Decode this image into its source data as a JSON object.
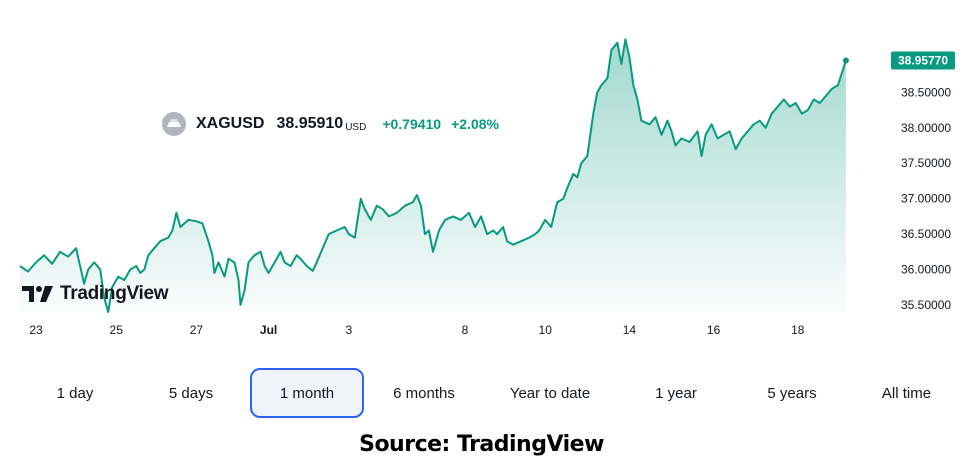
{
  "legend": {
    "symbol": "XAGUSD",
    "price": "38.95910",
    "currency": "USD",
    "change": "+0.79410",
    "change_pct": "+2.08%"
  },
  "watermark": {
    "text": "TradingView"
  },
  "last_price_label": "38.95770",
  "ranges": [
    {
      "label": "1 day",
      "active": false
    },
    {
      "label": "5 days",
      "active": false
    },
    {
      "label": "1 month",
      "active": true
    },
    {
      "label": "6 months",
      "active": false
    },
    {
      "label": "Year to date",
      "active": false
    },
    {
      "label": "1 year",
      "active": false
    },
    {
      "label": "5 years",
      "active": false
    },
    {
      "label": "All time",
      "active": false
    }
  ],
  "source": "Source: TradingView",
  "colors": {
    "line": "#089981",
    "area_top": "#089981",
    "accent": "#2962ff"
  },
  "chart_data": {
    "type": "area",
    "y_ticks": [
      "35.50000",
      "36.00000",
      "36.50000",
      "37.00000",
      "37.50000",
      "38.00000",
      "38.50000"
    ],
    "ylim": [
      35.4,
      39.55
    ],
    "x_ticks": [
      {
        "label": "23",
        "t": 0.4
      },
      {
        "label": "25",
        "t": 2.4
      },
      {
        "label": "27",
        "t": 4.4
      },
      {
        "label": "Jul",
        "t": 6.2
      },
      {
        "label": "3",
        "t": 8.2
      },
      {
        "label": "8",
        "t": 11.1
      },
      {
        "label": "10",
        "t": 13.1
      },
      {
        "label": "14",
        "t": 15.2
      },
      {
        "label": "16",
        "t": 17.3
      },
      {
        "label": "18",
        "t": 19.4
      }
    ],
    "xlim": [
      0,
      21.6
    ],
    "series": [
      {
        "points": [
          [
            0.0,
            36.05
          ],
          [
            0.2,
            35.97
          ],
          [
            0.4,
            36.1
          ],
          [
            0.6,
            36.2
          ],
          [
            0.8,
            36.08
          ],
          [
            1.0,
            36.25
          ],
          [
            1.2,
            36.18
          ],
          [
            1.4,
            36.3
          ],
          [
            1.5,
            36.05
          ],
          [
            1.6,
            35.8
          ],
          [
            1.7,
            36.0
          ],
          [
            1.85,
            36.1
          ],
          [
            2.0,
            36.0
          ],
          [
            2.1,
            35.6
          ],
          [
            2.2,
            35.4
          ],
          [
            2.3,
            35.75
          ],
          [
            2.45,
            35.9
          ],
          [
            2.6,
            35.85
          ],
          [
            2.75,
            36.0
          ],
          [
            2.9,
            36.05
          ],
          [
            3.0,
            35.95
          ],
          [
            3.1,
            36.0
          ],
          [
            3.2,
            36.2
          ],
          [
            3.35,
            36.3
          ],
          [
            3.5,
            36.4
          ],
          [
            3.7,
            36.45
          ],
          [
            3.8,
            36.55
          ],
          [
            3.9,
            36.8
          ],
          [
            4.0,
            36.6
          ],
          [
            4.2,
            36.7
          ],
          [
            4.4,
            36.68
          ],
          [
            4.55,
            36.65
          ],
          [
            4.7,
            36.4
          ],
          [
            4.8,
            36.2
          ],
          [
            4.85,
            35.95
          ],
          [
            4.95,
            36.1
          ],
          [
            5.1,
            35.9
          ],
          [
            5.2,
            36.15
          ],
          [
            5.35,
            36.1
          ],
          [
            5.45,
            35.85
          ],
          [
            5.5,
            35.5
          ],
          [
            5.6,
            35.7
          ],
          [
            5.7,
            36.1
          ],
          [
            5.85,
            36.2
          ],
          [
            6.0,
            36.25
          ],
          [
            6.1,
            36.05
          ],
          [
            6.2,
            35.95
          ],
          [
            6.35,
            36.1
          ],
          [
            6.5,
            36.25
          ],
          [
            6.6,
            36.1
          ],
          [
            6.75,
            36.05
          ],
          [
            6.9,
            36.2
          ],
          [
            7.0,
            36.15
          ],
          [
            7.15,
            36.05
          ],
          [
            7.3,
            35.98
          ],
          [
            7.4,
            36.1
          ],
          [
            7.55,
            36.3
          ],
          [
            7.7,
            36.5
          ],
          [
            7.9,
            36.55
          ],
          [
            8.1,
            36.6
          ],
          [
            8.2,
            36.5
          ],
          [
            8.35,
            36.45
          ],
          [
            8.5,
            37.0
          ],
          [
            8.6,
            36.85
          ],
          [
            8.75,
            36.7
          ],
          [
            8.9,
            36.9
          ],
          [
            9.05,
            36.85
          ],
          [
            9.2,
            36.75
          ],
          [
            9.4,
            36.8
          ],
          [
            9.6,
            36.9
          ],
          [
            9.8,
            36.95
          ],
          [
            9.9,
            37.05
          ],
          [
            10.0,
            36.9
          ],
          [
            10.1,
            36.5
          ],
          [
            10.2,
            36.55
          ],
          [
            10.3,
            36.25
          ],
          [
            10.45,
            36.55
          ],
          [
            10.6,
            36.7
          ],
          [
            10.8,
            36.75
          ],
          [
            11.0,
            36.7
          ],
          [
            11.2,
            36.8
          ],
          [
            11.35,
            36.6
          ],
          [
            11.5,
            36.75
          ],
          [
            11.65,
            36.5
          ],
          [
            11.8,
            36.55
          ],
          [
            11.9,
            36.5
          ],
          [
            12.05,
            36.6
          ],
          [
            12.15,
            36.4
          ],
          [
            12.3,
            36.35
          ],
          [
            12.5,
            36.4
          ],
          [
            12.7,
            36.45
          ],
          [
            12.85,
            36.5
          ],
          [
            12.95,
            36.55
          ],
          [
            13.1,
            36.7
          ],
          [
            13.25,
            36.6
          ],
          [
            13.4,
            36.95
          ],
          [
            13.55,
            37.0
          ],
          [
            13.65,
            37.15
          ],
          [
            13.8,
            37.35
          ],
          [
            13.9,
            37.3
          ],
          [
            14.0,
            37.5
          ],
          [
            14.15,
            37.6
          ],
          [
            14.3,
            38.2
          ],
          [
            14.4,
            38.5
          ],
          [
            14.5,
            38.6
          ],
          [
            14.65,
            38.7
          ],
          [
            14.75,
            39.1
          ],
          [
            14.9,
            39.2
          ],
          [
            15.0,
            38.9
          ],
          [
            15.1,
            39.25
          ],
          [
            15.2,
            39.0
          ],
          [
            15.3,
            38.6
          ],
          [
            15.4,
            38.4
          ],
          [
            15.5,
            38.1
          ],
          [
            15.7,
            38.05
          ],
          [
            15.85,
            38.15
          ],
          [
            16.0,
            37.9
          ],
          [
            16.15,
            38.1
          ],
          [
            16.25,
            37.95
          ],
          [
            16.35,
            37.75
          ],
          [
            16.5,
            37.85
          ],
          [
            16.7,
            37.8
          ],
          [
            16.9,
            37.95
          ],
          [
            17.0,
            37.6
          ],
          [
            17.1,
            37.9
          ],
          [
            17.25,
            38.05
          ],
          [
            17.4,
            37.85
          ],
          [
            17.55,
            37.9
          ],
          [
            17.7,
            37.95
          ],
          [
            17.85,
            37.7
          ],
          [
            18.0,
            37.85
          ],
          [
            18.15,
            37.95
          ],
          [
            18.3,
            38.05
          ],
          [
            18.45,
            38.1
          ],
          [
            18.6,
            38.0
          ],
          [
            18.75,
            38.2
          ],
          [
            18.9,
            38.3
          ],
          [
            19.05,
            38.4
          ],
          [
            19.2,
            38.3
          ],
          [
            19.35,
            38.35
          ],
          [
            19.5,
            38.2
          ],
          [
            19.65,
            38.25
          ],
          [
            19.8,
            38.4
          ],
          [
            19.95,
            38.35
          ],
          [
            20.1,
            38.45
          ],
          [
            20.25,
            38.55
          ],
          [
            20.4,
            38.6
          ],
          [
            20.6,
            38.95
          ]
        ]
      }
    ]
  }
}
